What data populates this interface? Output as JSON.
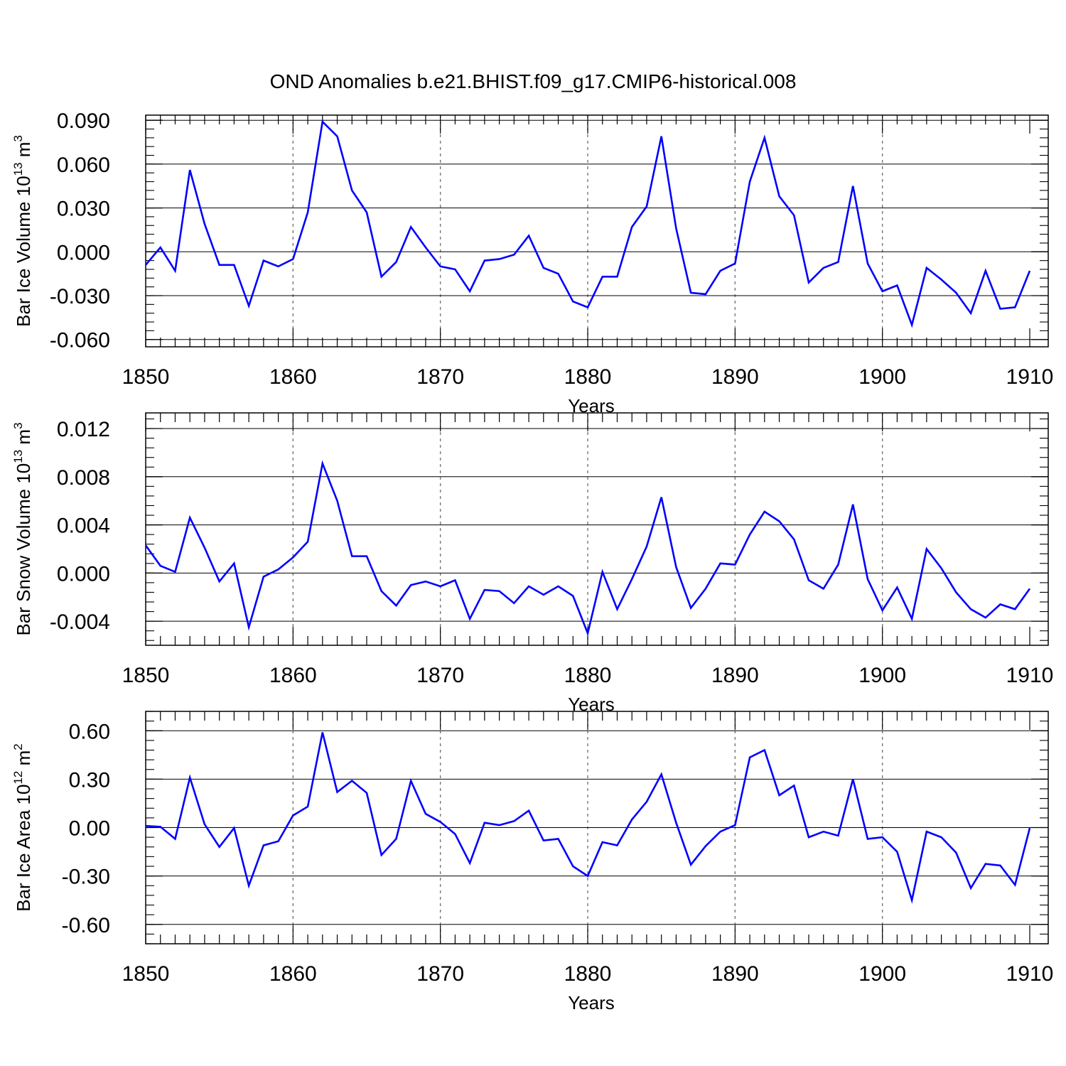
{
  "title": "OND Anomalies b.e21.BHIST.f09_g17.CMIP6-historical.008",
  "line_color": "#0000ff",
  "chart_data": [
    {
      "type": "line",
      "ylabel_main": "Bar Ice Volume 10",
      "ylabel_exp": "13",
      "ylabel_unit": " m",
      "ylabel_unit_exp": "3",
      "xlabel": "Years",
      "xlim": [
        1850,
        1910
      ],
      "ylim": [
        -0.065,
        0.0935
      ],
      "y_ticks": [
        "0.090",
        "0.060",
        "0.030",
        "0.000",
        "-0.030",
        "-0.060"
      ],
      "y_tick_values": [
        0.09,
        0.06,
        0.03,
        0.0,
        -0.03,
        -0.06
      ],
      "x_ticks": [
        "1850",
        "1860",
        "1870",
        "1880",
        "1890",
        "1900",
        "1910"
      ],
      "x": [
        1850,
        1851,
        1852,
        1853,
        1854,
        1855,
        1856,
        1857,
        1858,
        1859,
        1860,
        1861,
        1862,
        1863,
        1864,
        1865,
        1866,
        1867,
        1868,
        1869,
        1870,
        1871,
        1872,
        1873,
        1874,
        1875,
        1876,
        1877,
        1878,
        1879,
        1880,
        1881,
        1882,
        1883,
        1884,
        1885,
        1886,
        1887,
        1888,
        1889,
        1890,
        1891,
        1892,
        1893,
        1894,
        1895,
        1896,
        1897,
        1898,
        1899,
        1900,
        1901,
        1902,
        1903,
        1904,
        1905,
        1906,
        1907,
        1908,
        1909,
        1910
      ],
      "values": [
        -0.009,
        0.003,
        -0.013,
        0.056,
        0.019,
        -0.009,
        -0.009,
        -0.037,
        -0.006,
        -0.01,
        -0.005,
        0.027,
        0.089,
        0.079,
        0.042,
        0.027,
        -0.017,
        -0.007,
        0.017,
        0.003,
        -0.01,
        -0.012,
        -0.027,
        -0.006,
        -0.005,
        -0.002,
        0.011,
        -0.011,
        -0.015,
        -0.034,
        -0.038,
        -0.017,
        -0.017,
        0.017,
        0.031,
        0.079,
        0.016,
        -0.028,
        -0.029,
        -0.013,
        -0.008,
        0.048,
        0.078,
        0.038,
        0.025,
        -0.021,
        -0.011,
        -0.007,
        0.045,
        -0.008,
        -0.027,
        -0.023,
        -0.05,
        -0.011,
        -0.019,
        -0.028,
        -0.042,
        -0.013,
        -0.039,
        -0.038,
        -0.013
      ]
    },
    {
      "type": "line",
      "ylabel_main": "Bar Snow Volume 10",
      "ylabel_exp": "13",
      "ylabel_unit": " m",
      "ylabel_unit_exp": "3",
      "xlabel": "Years",
      "xlim": [
        1850,
        1910
      ],
      "ylim": [
        -0.006,
        0.0133
      ],
      "y_ticks": [
        "0.012",
        "0.008",
        "0.004",
        "0.000",
        "-0.004"
      ],
      "y_tick_values": [
        0.012,
        0.008,
        0.004,
        0.0,
        -0.004
      ],
      "x_ticks": [
        "1850",
        "1860",
        "1870",
        "1880",
        "1890",
        "1900",
        "1910"
      ],
      "x": [
        1850,
        1851,
        1852,
        1853,
        1854,
        1855,
        1856,
        1857,
        1858,
        1859,
        1860,
        1861,
        1862,
        1863,
        1864,
        1865,
        1866,
        1867,
        1868,
        1869,
        1870,
        1871,
        1872,
        1873,
        1874,
        1875,
        1876,
        1877,
        1878,
        1879,
        1880,
        1881,
        1882,
        1883,
        1884,
        1885,
        1886,
        1887,
        1888,
        1889,
        1890,
        1891,
        1892,
        1893,
        1894,
        1895,
        1896,
        1897,
        1898,
        1899,
        1900,
        1901,
        1902,
        1903,
        1904,
        1905,
        1906,
        1907,
        1908,
        1909,
        1910
      ],
      "values": [
        0.0023,
        0.0006,
        0.0001,
        0.0046,
        0.0021,
        -0.0007,
        0.0008,
        -0.0045,
        -0.0003,
        0.0003,
        0.0013,
        0.0026,
        0.0091,
        0.006,
        0.0014,
        0.0014,
        -0.0015,
        -0.0027,
        -0.001,
        -0.0007,
        -0.0011,
        -0.0006,
        -0.0038,
        -0.0014,
        -0.0015,
        -0.0025,
        -0.0011,
        -0.0018,
        -0.0011,
        -0.0019,
        -0.005,
        0.0001,
        -0.003,
        -0.0005,
        0.0022,
        0.0063,
        0.0005,
        -0.0029,
        -0.0013,
        0.0008,
        0.0007,
        0.0032,
        0.0051,
        0.0043,
        0.0028,
        -0.0006,
        -0.0013,
        0.0007,
        0.0057,
        -0.0005,
        -0.0031,
        -0.0012,
        -0.0038,
        0.002,
        0.0004,
        -0.0016,
        -0.003,
        -0.0037,
        -0.0026,
        -0.003,
        -0.0013
      ]
    },
    {
      "type": "line",
      "ylabel_main": "Bar Ice Area 10",
      "ylabel_exp": "12",
      "ylabel_unit": " m",
      "ylabel_unit_exp": "2",
      "xlabel": "Years",
      "xlim": [
        1850,
        1910
      ],
      "ylim": [
        -0.72,
        0.72
      ],
      "y_ticks": [
        "0.60",
        "0.30",
        "0.00",
        "-0.30",
        "-0.60"
      ],
      "y_tick_values": [
        0.6,
        0.3,
        0.0,
        -0.3,
        -0.6
      ],
      "x_ticks": [
        "1850",
        "1860",
        "1870",
        "1880",
        "1890",
        "1900",
        "1910"
      ],
      "x": [
        1850,
        1851,
        1852,
        1853,
        1854,
        1855,
        1856,
        1857,
        1858,
        1859,
        1860,
        1861,
        1862,
        1863,
        1864,
        1865,
        1866,
        1867,
        1868,
        1869,
        1870,
        1871,
        1872,
        1873,
        1874,
        1875,
        1876,
        1877,
        1878,
        1879,
        1880,
        1881,
        1882,
        1883,
        1884,
        1885,
        1886,
        1887,
        1888,
        1889,
        1890,
        1891,
        1892,
        1893,
        1894,
        1895,
        1896,
        1897,
        1898,
        1899,
        1900,
        1901,
        1902,
        1903,
        1904,
        1905,
        1906,
        1907,
        1908,
        1909,
        1910
      ],
      "values": [
        0.01,
        0.005,
        -0.07,
        0.31,
        0.02,
        -0.12,
        -0.003,
        -0.36,
        -0.11,
        -0.085,
        0.075,
        0.13,
        0.59,
        0.22,
        0.29,
        0.215,
        -0.17,
        -0.07,
        0.29,
        0.085,
        0.035,
        -0.04,
        -0.22,
        0.03,
        0.015,
        0.04,
        0.105,
        -0.08,
        -0.07,
        -0.24,
        -0.3,
        -0.09,
        -0.11,
        0.05,
        0.16,
        0.33,
        0.03,
        -0.23,
        -0.115,
        -0.025,
        0.015,
        0.435,
        0.48,
        0.2,
        0.26,
        -0.06,
        -0.025,
        -0.05,
        0.3,
        -0.07,
        -0.06,
        -0.15,
        -0.45,
        -0.025,
        -0.06,
        -0.155,
        -0.375,
        -0.225,
        -0.235,
        -0.355,
        -0.003
      ]
    }
  ]
}
